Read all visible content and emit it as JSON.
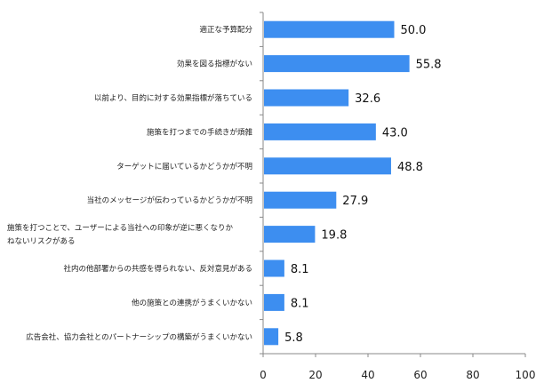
{
  "chart_data": {
    "type": "bar",
    "orientation": "horizontal",
    "categories": [
      "適正な予算配分",
      "効果を図る指標がない",
      "以前より、目的に対する効果指標が落ちている",
      "施策を打つまでの手続きが煩雑",
      "ターゲットに届いているかどうかが不明",
      "当社のメッセージが伝わっているかどうかが不明",
      [
        "施策を打つことで、ユーザーによる当社への印象が逆に悪くなりか",
        "ねないリスクがある"
      ],
      "社内の他部署からの共感を得られない、反対意見がある",
      "他の施策との連携がうまくいかない",
      "広告会社、協力会社とのパートナーシップの構築がうまくいかない"
    ],
    "values": [
      50.0,
      55.8,
      32.6,
      43.0,
      48.8,
      27.9,
      19.8,
      8.1,
      8.1,
      5.8
    ],
    "value_labels": [
      "50.0",
      "55.8",
      "32.6",
      "43.0",
      "48.8",
      "27.9",
      "19.8",
      "8.1",
      "8.1",
      "5.8"
    ],
    "xlim": [
      0,
      100
    ],
    "xticks": [
      0,
      20,
      40,
      60,
      80,
      100
    ],
    "grid": false,
    "legend": "none",
    "bar_color": "#3d8ef0",
    "axis_color": "#888888"
  }
}
